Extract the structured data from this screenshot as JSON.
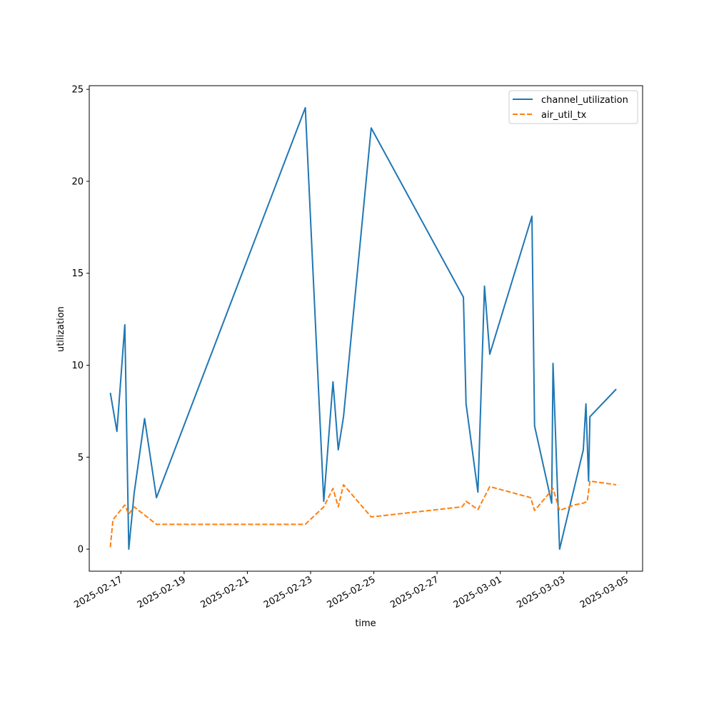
{
  "chart_data": {
    "type": "line",
    "title": "",
    "xlabel": "time",
    "ylabel": "utilization",
    "x_is_date": true,
    "xlim": [
      "2025-02-16T00:00",
      "2025-03-05T12:00"
    ],
    "ylim": [
      -1.2,
      25.2
    ],
    "grid": false,
    "legend_position": "top-right",
    "x_ticks": [
      {
        "value": "2025-02-17",
        "label": "2025-02-17"
      },
      {
        "value": "2025-02-19",
        "label": "2025-02-19"
      },
      {
        "value": "2025-02-21",
        "label": "2025-02-21"
      },
      {
        "value": "2025-02-23",
        "label": "2025-02-23"
      },
      {
        "value": "2025-02-25",
        "label": "2025-02-25"
      },
      {
        "value": "2025-02-27",
        "label": "2025-02-27"
      },
      {
        "value": "2025-03-01",
        "label": "2025-03-01"
      },
      {
        "value": "2025-03-03",
        "label": "2025-03-03"
      },
      {
        "value": "2025-03-05",
        "label": "2025-03-05"
      }
    ],
    "y_ticks": [
      {
        "value": 0,
        "label": "0"
      },
      {
        "value": 5,
        "label": "5"
      },
      {
        "value": 10,
        "label": "10"
      },
      {
        "value": 15,
        "label": "15"
      },
      {
        "value": 20,
        "label": "20"
      },
      {
        "value": 25,
        "label": "25"
      }
    ],
    "series": [
      {
        "name": "channel_utilization",
        "color": "#1f77b4",
        "dash": "solid",
        "points": [
          [
            "2025-02-16T16:00",
            8.5
          ],
          [
            "2025-02-16T21:00",
            6.4
          ],
          [
            "2025-02-17T03:00",
            12.2
          ],
          [
            "2025-02-17T06:00",
            0.0
          ],
          [
            "2025-02-17T10:00",
            3.0
          ],
          [
            "2025-02-17T18:00",
            7.1
          ],
          [
            "2025-02-18T03:00",
            2.8
          ],
          [
            "2025-02-22T20:00",
            24.0
          ],
          [
            "2025-02-23T10:00",
            2.6
          ],
          [
            "2025-02-23T17:00",
            9.1
          ],
          [
            "2025-02-23T21:00",
            5.4
          ],
          [
            "2025-02-24T01:00",
            7.2
          ],
          [
            "2025-02-24T22:00",
            22.9
          ],
          [
            "2025-02-27T20:00",
            13.7
          ],
          [
            "2025-02-27T22:00",
            7.9
          ],
          [
            "2025-02-28T07:00",
            3.1
          ],
          [
            "2025-02-28T12:00",
            14.3
          ],
          [
            "2025-02-28T16:00",
            10.6
          ],
          [
            "2025-03-02T00:00",
            18.1
          ],
          [
            "2025-03-02T02:00",
            6.7
          ],
          [
            "2025-03-02T15:00",
            2.5
          ],
          [
            "2025-03-02T16:00",
            10.1
          ],
          [
            "2025-03-02T21:00",
            0.0
          ],
          [
            "2025-03-03T15:00",
            5.4
          ],
          [
            "2025-03-03T17:00",
            7.9
          ],
          [
            "2025-03-03T19:00",
            3.7
          ],
          [
            "2025-03-03T20:00",
            7.2
          ],
          [
            "2025-03-04T16:00",
            8.7
          ]
        ]
      },
      {
        "name": "air_util_tx",
        "color": "#ff7f0e",
        "dash": "dashed",
        "points": [
          [
            "2025-02-16T16:00",
            0.1
          ],
          [
            "2025-02-16T18:00",
            1.6
          ],
          [
            "2025-02-17T03:00",
            2.4
          ],
          [
            "2025-02-17T06:00",
            1.9
          ],
          [
            "2025-02-17T10:00",
            2.3
          ],
          [
            "2025-02-18T03:00",
            1.35
          ],
          [
            "2025-02-22T20:00",
            1.35
          ],
          [
            "2025-02-23T10:00",
            2.3
          ],
          [
            "2025-02-23T17:00",
            3.3
          ],
          [
            "2025-02-23T21:00",
            2.3
          ],
          [
            "2025-02-24T01:00",
            3.5
          ],
          [
            "2025-02-24T22:00",
            1.75
          ],
          [
            "2025-02-27T19:00",
            2.3
          ],
          [
            "2025-02-27T22:00",
            2.6
          ],
          [
            "2025-02-28T07:00",
            2.15
          ],
          [
            "2025-02-28T16:00",
            3.4
          ],
          [
            "2025-03-01T23:00",
            2.8
          ],
          [
            "2025-03-02T02:00",
            2.1
          ],
          [
            "2025-03-02T15:00",
            3.2
          ],
          [
            "2025-03-02T16:00",
            3.3
          ],
          [
            "2025-03-02T21:00",
            2.1
          ],
          [
            "2025-03-03T08:00",
            2.4
          ],
          [
            "2025-03-03T15:00",
            2.5
          ],
          [
            "2025-03-03T18:00",
            2.6
          ],
          [
            "2025-03-03T20:00",
            3.7
          ],
          [
            "2025-03-04T16:00",
            3.5
          ]
        ]
      }
    ]
  }
}
